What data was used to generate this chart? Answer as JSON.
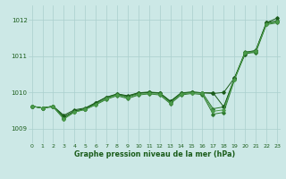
{
  "background_color": "#cce8e6",
  "grid_color": "#aacfcd",
  "line_color_dark": "#1a5c1a",
  "line_color_mid": "#2d7a2d",
  "line_color_light": "#4a9a4a",
  "x_ticks": [
    0,
    1,
    2,
    3,
    4,
    5,
    6,
    7,
    8,
    9,
    10,
    11,
    12,
    13,
    14,
    15,
    16,
    17,
    18,
    19,
    20,
    21,
    22,
    23
  ],
  "y_ticks": [
    1009,
    1010,
    1011,
    1012
  ],
  "ylim": [
    1008.6,
    1012.4
  ],
  "xlim": [
    -0.3,
    23.3
  ],
  "xlabel": "Graphe pression niveau de la mer (hPa)",
  "s1": [
    1009.62,
    1009.57,
    1009.62,
    1009.37,
    1009.52,
    1009.57,
    1009.72,
    1009.87,
    1009.94,
    1009.88,
    1009.97,
    1010.0,
    1009.98,
    1009.73,
    1009.97,
    1010.0,
    1009.99,
    1009.97,
    1010.0,
    1010.4,
    1011.05,
    1011.15,
    1011.92,
    1012.05
  ],
  "s2": [
    1009.62,
    1009.57,
    1009.62,
    1009.3,
    1009.47,
    1009.55,
    1009.69,
    1009.83,
    1009.96,
    1009.89,
    1009.99,
    1010.01,
    1009.99,
    1009.76,
    1009.99,
    1010.01,
    1009.99,
    1009.55,
    1009.6,
    1010.38,
    1011.12,
    1011.12,
    1011.9,
    1011.95
  ],
  "s3": [
    1009.62,
    1009.57,
    1009.6,
    1009.27,
    1009.46,
    1009.53,
    1009.66,
    1009.81,
    1009.91,
    1009.83,
    1009.93,
    1009.96,
    1009.93,
    1009.69,
    1009.93,
    1009.97,
    1009.94,
    1009.4,
    1009.45,
    1010.34,
    1011.08,
    1011.1,
    1011.87,
    1011.92
  ],
  "s4": [
    1009.62,
    1009.57,
    1009.62,
    1009.33,
    1009.49,
    1009.55,
    1009.71,
    1009.87,
    1009.96,
    1009.91,
    1009.99,
    1010.0,
    1009.98,
    1009.75,
    1009.98,
    1010.01,
    1009.99,
    1009.99,
    1009.6,
    1010.39,
    1011.1,
    1011.16,
    1011.93,
    1011.97
  ],
  "s5": [
    1009.62,
    1009.57,
    1009.62,
    1009.27,
    1009.46,
    1009.53,
    1009.67,
    1009.83,
    1009.93,
    1009.85,
    1009.95,
    1009.97,
    1009.95,
    1009.71,
    1009.96,
    1009.99,
    1009.97,
    1009.48,
    1009.52,
    1010.36,
    1011.09,
    1011.13,
    1011.89,
    1011.95
  ]
}
